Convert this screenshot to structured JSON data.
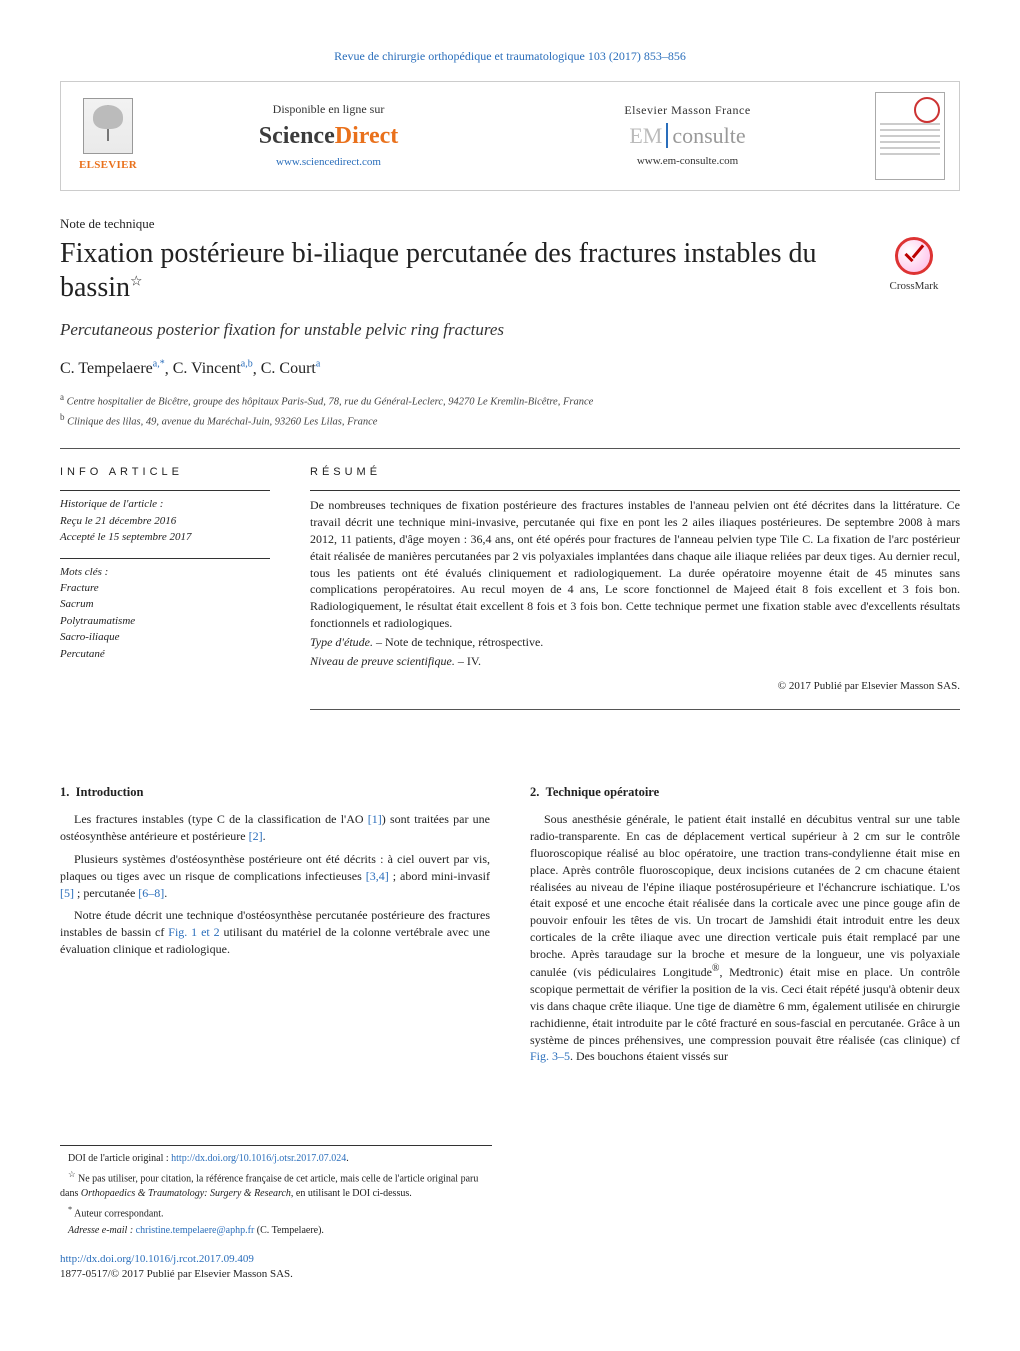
{
  "journal_header": "Revue de chirurgie orthopédique et traumatologique 103 (2017) 853–856",
  "header": {
    "elsevier_label": "ELSEVIER",
    "sd_available": "Disponible en ligne sur",
    "sd_logo_left": "Science",
    "sd_logo_right": "Direct",
    "sd_url": "www.sciencedirect.com",
    "em_label": "Elsevier Masson France",
    "em_logo_left": "EM",
    "em_logo_right": "consulte",
    "em_url": "www.em-consulte.com"
  },
  "note_type": "Note de technique",
  "title": "Fixation postérieure bi-iliaque percutanée des fractures instables du bassin",
  "title_note_marker": "☆",
  "subtitle": "Percutaneous posterior fixation for unstable pelvic ring fractures",
  "crossmark_label": "CrossMark",
  "authors_html": "C. Tempelaere",
  "authors": [
    {
      "name": "C. Tempelaere",
      "sup": "a,*"
    },
    {
      "name": "C. Vincent",
      "sup": "a,b"
    },
    {
      "name": "C. Court",
      "sup": "a"
    }
  ],
  "affiliations": [
    {
      "sup": "a",
      "text": "Centre hospitalier de Bicêtre, groupe des hôpitaux Paris-Sud, 78, rue du Général-Leclerc, 94270 Le Kremlin-Bicêtre, France"
    },
    {
      "sup": "b",
      "text": "Clinique des lilas, 49, avenue du Maréchal-Juin, 93260 Les Lilas, France"
    }
  ],
  "info": {
    "heading": "INFO ARTICLE",
    "history_label": "Historique de l'article :",
    "received": "Reçu le 21 décembre 2016",
    "accepted": "Accepté le 15 septembre 2017",
    "keywords_label": "Mots clés :",
    "keywords": [
      "Fracture",
      "Sacrum",
      "Polytraumatisme",
      "Sacro-iliaque",
      "Percutané"
    ]
  },
  "resume": {
    "heading": "RÉSUMÉ",
    "body": "De nombreuses techniques de fixation postérieure des fractures instables de l'anneau pelvien ont été décrites dans la littérature. Ce travail décrit une technique mini-invasive, percutanée qui fixe en pont les 2 ailes iliaques postérieures. De septembre 2008 à mars 2012, 11 patients, d'âge moyen : 36,4 ans, ont été opérés pour fractures de l'anneau pelvien type Tile C. La fixation de l'arc postérieur était réalisée de manières percutanées par 2 vis polyaxiales implantées dans chaque aile iliaque reliées par deux tiges. Au dernier recul, tous les patients ont été évalués cliniquement et radiologiquement. La durée opératoire moyenne était de 45 minutes sans complications peropératoires. Au recul moyen de 4 ans, Le score fonctionnel de Majeed était 8 fois excellent et 3 fois bon. Radiologiquement, le résultat était excellent 8 fois et 3 fois bon. Cette technique permet une fixation stable avec d'excellents résultats fonctionnels et radiologiques.",
    "study_type_label": "Type d'étude. –",
    "study_type": "Note de technique, rétrospective.",
    "evidence_label": "Niveau de preuve scientifique. –",
    "evidence": "IV.",
    "copyright": "© 2017 Publié par Elsevier Masson SAS."
  },
  "body": {
    "section1_num": "1.",
    "section1_title": "Introduction",
    "section1_p1_pre": "Les fractures instables (type C de la classification de l'AO ",
    "ref1": "[1]",
    "section1_p1_mid": ") sont traitées par une ostéosynthèse antérieure et postérieure ",
    "ref2": "[2]",
    "section1_p1_post": ".",
    "section1_p2_a": "Plusieurs systèmes d'ostéosynthèse postérieure ont été décrits : à ciel ouvert par vis, plaques ou tiges avec un risque de complications infectieuses ",
    "ref34": "[3,4]",
    "section1_p2_b": " ; abord mini-invasif ",
    "ref5": "[5]",
    "section1_p2_c": " ; percutanée ",
    "ref68": "[6–8]",
    "section1_p2_d": ".",
    "section1_p3_a": "Notre étude décrit une technique d'ostéosynthèse percutanée postérieure des fractures instables de bassin cf ",
    "fig12": "Fig. 1 et 2",
    "section1_p3_b": " utilisant du matériel de la colonne vertébrale avec une évaluation clinique et radiologique.",
    "section2_num": "2.",
    "section2_title": "Technique opératoire",
    "section2_p1_a": "Sous anesthésie générale, le patient était installé en décubitus ventral sur une table radio-transparente. En cas de déplacement vertical supérieur à 2 cm sur le contrôle fluoroscopique réalisé au bloc opératoire, une traction trans-condylienne était mise en place. Après contrôle fluoroscopique, deux incisions cutanées de 2 cm chacune étaient réalisées au niveau de l'épine iliaque postérosupérieure et l'échancrure ischiatique. L'os était exposé et une encoche était réalisée dans la corticale avec une pince gouge afin de pouvoir enfouir les têtes de vis. Un trocart de Jamshidi était introduit entre les deux corticales de la crête iliaque avec une direction verticale puis était remplacé par une broche. Après taraudage sur la broche et mesure de la longueur, une vis polyaxiale canulée (vis pédiculaires Longitude",
    "reg": "®",
    "section2_p1_b": ", Medtronic) était mise en place. Un contrôle scopique permettait de vérifier la position de la vis. Ceci était répété jusqu'à obtenir deux vis dans chaque crête iliaque. Une tige de diamètre 6 mm, également utilisée en chirurgie rachidienne, était introduite par le côté fracturé en sous-fascial en percutanée. Grâce à un système de pinces préhensives, une compression pouvait être réalisée (cas clinique) cf ",
    "fig35": "Fig. 3–5",
    "section2_p1_c": ". Des bouchons étaient vissés sur"
  },
  "footnotes": {
    "doi_orig_label": "DOI de l'article original :",
    "doi_orig": "http://dx.doi.org/10.1016/j.otsr.2017.07.024",
    "star": "☆",
    "star_text_a": "Ne pas utiliser, pour citation, la référence française de cet article, mais celle de l'article original paru dans ",
    "journal_ital": "Orthopaedics & Traumatology: Surgery & Research",
    "star_text_b": ", en utilisant le DOI ci-dessus.",
    "ast": "*",
    "corresp": "Auteur correspondant.",
    "email_label": "Adresse e-mail :",
    "email": "christine.tempelaere@aphp.fr",
    "email_person": "(C. Tempelaere)."
  },
  "doi": "http://dx.doi.org/10.1016/j.rcot.2017.09.409",
  "issn": "1877-0517/© 2017 Publié par Elsevier Masson SAS.",
  "colors": {
    "link": "#2a6ebb",
    "orange": "#e9711c"
  }
}
